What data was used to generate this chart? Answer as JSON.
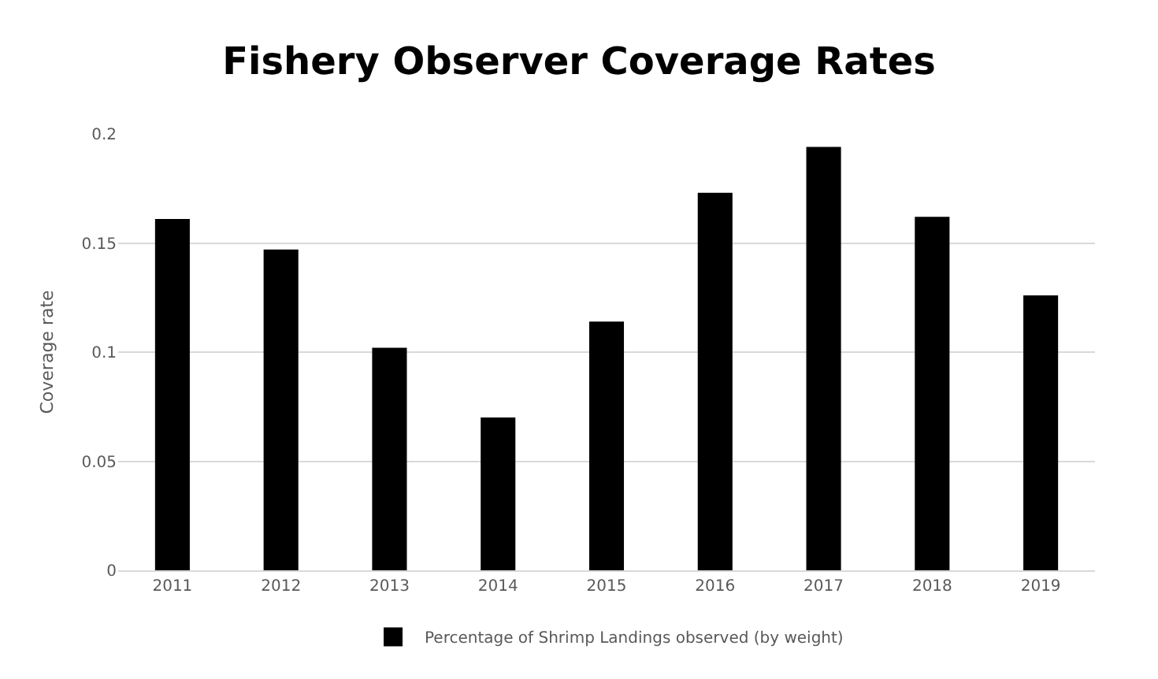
{
  "chart_data": {
    "type": "bar",
    "title": "Fishery Observer Coverage Rates",
    "ylabel": "Coverage rate",
    "categories": [
      "2011",
      "2012",
      "2013",
      "2014",
      "2015",
      "2016",
      "2017",
      "2018",
      "2019"
    ],
    "series": [
      {
        "name": "Percentage of Shrimp Landings observed (by weight)",
        "color": "#000000",
        "values": [
          0.161,
          0.147,
          0.102,
          0.07,
          0.114,
          0.173,
          0.194,
          0.162,
          0.126
        ]
      }
    ],
    "ylim": [
      0,
      0.2
    ],
    "yticks": [
      0,
      0.05,
      0.1,
      0.15,
      0.2
    ],
    "grid": "y",
    "legend": "bottom"
  }
}
